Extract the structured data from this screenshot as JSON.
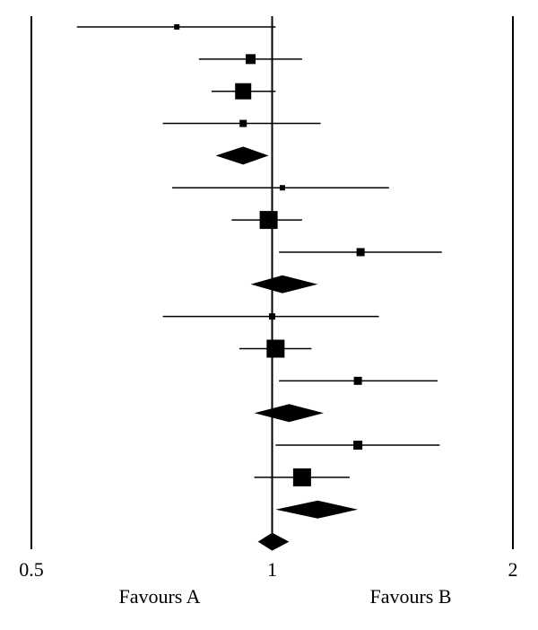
{
  "chart_data": {
    "type": "forest",
    "log_scale": true,
    "xlim": [
      0.5,
      2
    ],
    "xticks": [
      0.5,
      1,
      2
    ],
    "left_label": "Favours A",
    "right_label": "Favours B",
    "color": "#000000",
    "rows": [
      {
        "kind": "study",
        "estimate": 0.76,
        "lower": 0.57,
        "upper": 1.01,
        "size": 6
      },
      {
        "kind": "study",
        "estimate": 0.94,
        "lower": 0.81,
        "upper": 1.09,
        "size": 11
      },
      {
        "kind": "study",
        "estimate": 0.92,
        "lower": 0.84,
        "upper": 1.01,
        "size": 18
      },
      {
        "kind": "study",
        "estimate": 0.92,
        "lower": 0.73,
        "upper": 1.15,
        "size": 8
      },
      {
        "kind": "pooled",
        "estimate": 0.92,
        "lower": 0.85,
        "upper": 0.99
      },
      {
        "kind": "study",
        "estimate": 1.03,
        "lower": 0.75,
        "upper": 1.4,
        "size": 6
      },
      {
        "kind": "study",
        "estimate": 0.99,
        "lower": 0.89,
        "upper": 1.09,
        "size": 20
      },
      {
        "kind": "study",
        "estimate": 1.29,
        "lower": 1.02,
        "upper": 1.63,
        "size": 9
      },
      {
        "kind": "pooled",
        "estimate": 1.03,
        "lower": 0.94,
        "upper": 1.14
      },
      {
        "kind": "study",
        "estimate": 1.0,
        "lower": 0.73,
        "upper": 1.36,
        "size": 7
      },
      {
        "kind": "study",
        "estimate": 1.01,
        "lower": 0.91,
        "upper": 1.12,
        "size": 20
      },
      {
        "kind": "study",
        "estimate": 1.28,
        "lower": 1.02,
        "upper": 1.61,
        "size": 9
      },
      {
        "kind": "pooled",
        "estimate": 1.05,
        "lower": 0.95,
        "upper": 1.16
      },
      {
        "kind": "study",
        "estimate": 1.28,
        "lower": 1.01,
        "upper": 1.62,
        "size": 10
      },
      {
        "kind": "study",
        "estimate": 1.09,
        "lower": 0.95,
        "upper": 1.25,
        "size": 20
      },
      {
        "kind": "pooled",
        "estimate": 1.14,
        "lower": 1.01,
        "upper": 1.28
      },
      {
        "kind": "pooled",
        "estimate": 1.0,
        "lower": 0.96,
        "upper": 1.05
      }
    ]
  }
}
